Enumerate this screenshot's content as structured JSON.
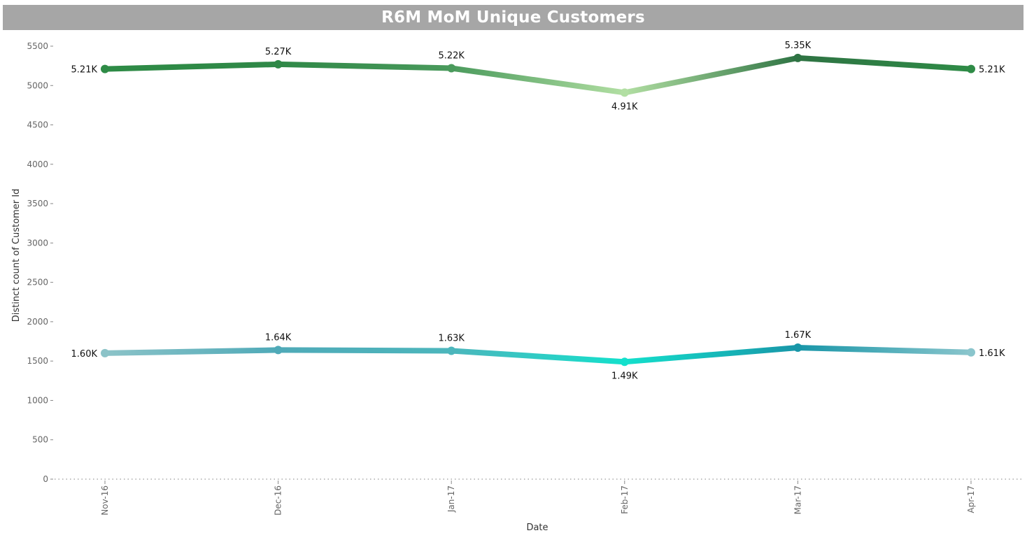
{
  "title": "R6M MoM Unique Customers",
  "chart_data": {
    "type": "line",
    "title": "R6M MoM Unique Customers",
    "xlabel": "Date",
    "ylabel": "Distinct count of Customer Id",
    "categories": [
      "Nov-16",
      "Dec-16",
      "Jan-17",
      "Feb-17",
      "Mar-17",
      "Apr-17"
    ],
    "ylim": [
      0,
      5500
    ],
    "yticks": [
      0,
      500,
      1000,
      1500,
      2000,
      2500,
      3000,
      3500,
      4000,
      4500,
      5000,
      5500
    ],
    "grid": false,
    "legend": "none",
    "series": [
      {
        "values": [
          5210,
          5270,
          5220,
          4910,
          5350,
          5210
        ],
        "labels": [
          "5.21K",
          "5.27K",
          "5.22K",
          "4.91K",
          "5.35K",
          "5.21K"
        ],
        "colors": [
          "#2e8b46",
          "#2f8847",
          "#4a9a5c",
          "#b2dfa3",
          "#2e7343",
          "#2e8b46"
        ]
      },
      {
        "values": [
          1600,
          1640,
          1630,
          1490,
          1670,
          1610
        ],
        "labels": [
          "1.60K",
          "1.64K",
          "1.63K",
          "1.49K",
          "1.67K",
          "1.61K"
        ],
        "colors": [
          "#8cc3c8",
          "#4faab8",
          "#4cb6bc",
          "#14e0cc",
          "#1896a8",
          "#8ac5cc"
        ]
      }
    ]
  }
}
